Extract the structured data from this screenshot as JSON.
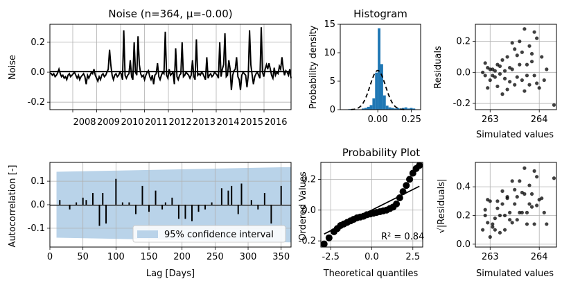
{
  "chart_data": [
    {
      "id": "noise",
      "type": "line",
      "title": "Noise (n=364, μ=-0.00)",
      "ylabel": "Noise",
      "x_tick_labels": [
        "2008",
        "2009",
        "2010",
        "2011",
        "2012",
        "2013",
        "2014",
        "2015",
        "2016"
      ],
      "y_ticks": [
        "-0.2",
        "0.0",
        "0.2"
      ],
      "ylim": [
        -0.25,
        0.32
      ],
      "grid": true,
      "series": [
        {
          "values": [
            -0.005,
            -0.01,
            -0.02,
            -0.01,
            -0.03,
            -0.02,
            -0.005,
            0.02,
            -0.01,
            -0.03,
            -0.02,
            -0.04,
            -0.03,
            -0.05,
            -0.02,
            -0.01,
            -0.03,
            -0.02,
            -0.01,
            0.0,
            -0.02,
            -0.04,
            -0.02,
            -0.05,
            -0.03,
            -0.02,
            -0.01,
            -0.03,
            -0.08,
            -0.02,
            -0.04,
            -0.02,
            0.0,
            -0.01,
            0.02,
            -0.02,
            -0.04,
            -0.06,
            -0.03,
            -0.05,
            -0.02,
            -0.01,
            -0.03,
            -0.02,
            0.0,
            0.02,
            0.15,
            0.05,
            -0.02,
            -0.05,
            -0.02,
            -0.01,
            -0.03,
            -0.02,
            0.0,
            -0.01,
            -0.05,
            0.28,
            -0.02,
            -0.04,
            -0.02,
            -0.01,
            0.08,
            -0.03,
            -0.05,
            0.2,
            0.0,
            -0.02,
            0.24,
            0.05,
            -0.01,
            -0.03,
            -0.02,
            -0.05,
            -0.02,
            0.0,
            0.01,
            -0.03,
            -0.05,
            -0.02,
            -0.08,
            -0.02,
            -0.01,
            0.06,
            -0.03,
            -0.05,
            -0.02,
            0.0,
            -0.01,
            0.27,
            -0.02,
            -0.04,
            0.02,
            -0.02,
            -0.01,
            0.0,
            -0.08,
            0.16,
            -0.03,
            -0.05,
            -0.02,
            -0.01,
            0.2,
            -0.03,
            -0.02,
            0.0,
            -0.01,
            -0.02,
            -0.04,
            -0.02,
            0.08,
            -0.03,
            -0.05,
            0.22,
            -0.02,
            -0.01,
            -0.02,
            0.0,
            -0.01,
            -0.03,
            -0.05,
            0.1,
            -0.04,
            -0.02,
            -0.01,
            -0.03,
            -0.02,
            0.0,
            -0.01,
            -0.02,
            -0.04,
            0.2,
            -0.03,
            0.02,
            0.05,
            0.26,
            -0.03,
            -0.02,
            0.08,
            0.02,
            -0.12,
            -0.02,
            0.01,
            0.02,
            0.1,
            -0.03,
            -0.05,
            -0.12,
            -0.02,
            0.0,
            -0.01,
            -0.02,
            -0.1,
            -0.02,
            0.28,
            0.05,
            -0.02,
            -0.08,
            -0.03,
            -0.01,
            0.0,
            -0.02,
            -0.04,
            0.3,
            0.0,
            -0.03,
            0.02,
            0.05,
            0.02,
            0.06,
            0.02,
            -0.02,
            -0.04,
            0.03,
            -0.02,
            0.0,
            -0.01,
            0.04,
            0.02,
            0.1,
            0.02,
            -0.02,
            0.01,
            0.0,
            -0.02,
            0.02,
            -0.04
          ]
        }
      ]
    },
    {
      "id": "histogram",
      "type": "bar",
      "title": "Histogram",
      "ylabel": "Probability density",
      "x_ticks": [
        "0.00",
        "0.25"
      ],
      "y_ticks": [
        "0",
        "5",
        "10",
        "15"
      ],
      "ylim": [
        0,
        15
      ],
      "xlim": [
        -0.28,
        0.32
      ],
      "bin_edges": [
        -0.22,
        -0.2,
        -0.18,
        -0.16,
        -0.14,
        -0.12,
        -0.1,
        -0.08,
        -0.06,
        -0.04,
        -0.02,
        0.0,
        0.02,
        0.04,
        0.06,
        0.08,
        0.1,
        0.12,
        0.14,
        0.16,
        0.18,
        0.2,
        0.22,
        0.24,
        0.26,
        0.28
      ],
      "values": [
        0.1,
        0.0,
        0.0,
        0.0,
        0.0,
        0.2,
        0.3,
        0.5,
        0.8,
        2.0,
        6.5,
        14.3,
        8.0,
        2.5,
        0.7,
        0.4,
        0.3,
        0.2,
        0.3,
        0.2,
        0.3,
        0.4,
        0.2,
        0.3,
        0.2
      ],
      "curve": {
        "mu": 0.0,
        "sigma": 0.058,
        "style": "dashed"
      }
    },
    {
      "id": "residuals_scatter",
      "type": "scatter",
      "ylabel": "Residuals",
      "xlabel": "Simulated values",
      "x_ticks": [
        "263",
        "264"
      ],
      "y_ticks": [
        "-0.2",
        "0.0",
        "0.2"
      ],
      "xlim": [
        262.7,
        264.35
      ],
      "ylim": [
        -0.24,
        0.31
      ],
      "points": [
        [
          262.85,
          0.0
        ],
        [
          262.9,
          -0.02
        ],
        [
          262.95,
          0.03
        ],
        [
          263.0,
          -0.05
        ],
        [
          263.05,
          0.02
        ],
        [
          263.1,
          -0.03
        ],
        [
          263.15,
          0.05
        ],
        [
          263.2,
          -0.01
        ],
        [
          263.25,
          0.08
        ],
        [
          263.3,
          -0.04
        ],
        [
          263.35,
          0.1
        ],
        [
          263.4,
          -0.06
        ],
        [
          263.45,
          0.02
        ],
        [
          263.5,
          0.15
        ],
        [
          263.55,
          -0.03
        ],
        [
          263.6,
          0.2
        ],
        [
          263.65,
          -0.05
        ],
        [
          263.7,
          0.28
        ],
        [
          263.75,
          0.05
        ],
        [
          263.8,
          -0.08
        ],
        [
          263.85,
          0.12
        ],
        [
          263.9,
          -0.02
        ],
        [
          263.95,
          0.22
        ],
        [
          264.0,
          -0.1
        ],
        [
          264.05,
          0.1
        ],
        [
          264.1,
          -0.05
        ],
        [
          264.15,
          0.02
        ],
        [
          264.3,
          -0.21
        ],
        [
          262.95,
          -0.1
        ],
        [
          263.0,
          0.02
        ],
        [
          263.05,
          -0.02
        ],
        [
          263.1,
          0.01
        ],
        [
          263.2,
          0.04
        ],
        [
          263.3,
          0.01
        ],
        [
          263.4,
          0.03
        ],
        [
          263.5,
          -0.08
        ],
        [
          263.6,
          0.05
        ],
        [
          263.7,
          -0.12
        ],
        [
          263.8,
          0.17
        ],
        [
          263.9,
          0.26
        ],
        [
          263.45,
          0.19
        ],
        [
          263.25,
          -0.14
        ],
        [
          263.15,
          -0.09
        ],
        [
          262.9,
          0.06
        ],
        [
          263.35,
          -0.11
        ],
        [
          263.55,
          0.11
        ],
        [
          263.65,
          0.13
        ],
        [
          263.75,
          -0.02
        ],
        [
          263.85,
          0.07
        ],
        [
          263.95,
          -0.07
        ]
      ],
      "grid": true
    },
    {
      "id": "autocorrelation",
      "type": "bar",
      "ylabel": "Autocorrelation [-]",
      "xlabel": "Lag [Days]",
      "x_ticks": [
        "0",
        "50",
        "100",
        "150",
        "200",
        "250",
        "300",
        "350"
      ],
      "y_ticks": [
        "-0.1",
        "0.0",
        "0.1"
      ],
      "xlim": [
        0,
        365
      ],
      "ylim": [
        -0.18,
        0.18
      ],
      "legend": "95% confidence interval",
      "legend_position": "lower-right",
      "confidence_band": {
        "start": [
          10,
          0.14
        ],
        "end": [
          365,
          0.16
        ]
      },
      "lags": [
        15,
        30,
        40,
        50,
        55,
        65,
        75,
        80,
        85,
        100,
        110,
        120,
        130,
        140,
        150,
        160,
        170,
        175,
        185,
        195,
        205,
        215,
        225,
        235,
        245,
        260,
        270,
        275,
        285,
        290,
        305,
        315,
        325,
        335,
        350
      ],
      "values": [
        0.02,
        -0.02,
        0.01,
        0.03,
        0.02,
        0.05,
        -0.09,
        0.05,
        -0.08,
        0.11,
        0.01,
        0.01,
        -0.04,
        0.08,
        -0.03,
        0.06,
        -0.02,
        0.01,
        0.03,
        -0.06,
        -0.06,
        -0.07,
        -0.03,
        -0.02,
        0.01,
        0.07,
        0.06,
        0.08,
        -0.04,
        0.09,
        0.02,
        -0.02,
        0.05,
        -0.08,
        0.08
      ],
      "grid": true
    },
    {
      "id": "probability_plot",
      "type": "scatter",
      "title": "Probability Plot",
      "ylabel": "Ordered Values",
      "xlabel": "Theoretical quantiles",
      "x_ticks": [
        "-2.5",
        "0.0",
        "2.5"
      ],
      "y_ticks": [
        "-0.2",
        "0.0",
        "0.2"
      ],
      "xlim": [
        -3.1,
        3.1
      ],
      "ylim": [
        -0.24,
        0.31
      ],
      "annotation": "R² = 0.84",
      "fit_line": {
        "from": [
          -2.9,
          -0.155
        ],
        "to": [
          2.9,
          0.155
        ]
      },
      "quantile_points": [
        [
          -2.9,
          -0.22
        ],
        [
          -2.6,
          -0.18
        ],
        [
          -2.3,
          -0.14
        ],
        [
          -2.1,
          -0.12
        ],
        [
          -1.9,
          -0.1
        ],
        [
          -1.7,
          -0.09
        ],
        [
          -1.5,
          -0.08
        ],
        [
          -1.3,
          -0.07
        ],
        [
          -1.1,
          -0.06
        ],
        [
          -0.9,
          -0.05
        ],
        [
          -0.7,
          -0.045
        ],
        [
          -0.5,
          -0.04
        ],
        [
          -0.3,
          -0.03
        ],
        [
          -0.1,
          -0.025
        ],
        [
          0.1,
          -0.02
        ],
        [
          0.3,
          -0.015
        ],
        [
          0.5,
          -0.01
        ],
        [
          0.7,
          -0.005
        ],
        [
          0.9,
          0.0
        ],
        [
          1.1,
          0.01
        ],
        [
          1.3,
          0.02
        ],
        [
          1.5,
          0.04
        ],
        [
          1.7,
          0.08
        ],
        [
          1.9,
          0.12
        ],
        [
          2.1,
          0.16
        ],
        [
          2.3,
          0.2
        ],
        [
          2.5,
          0.24
        ],
        [
          2.7,
          0.27
        ],
        [
          2.9,
          0.29
        ]
      ],
      "grid": true
    },
    {
      "id": "sqrt_residuals",
      "type": "scatter",
      "ylabel": "√|Residuals|",
      "xlabel": "Simulated values",
      "x_ticks": [
        "263",
        "264"
      ],
      "y_ticks": [
        "0.0",
        "0.2",
        "0.4"
      ],
      "xlim": [
        262.7,
        264.35
      ],
      "ylim": [
        -0.02,
        0.57
      ],
      "points": [
        [
          262.85,
          0.1
        ],
        [
          262.9,
          0.2
        ],
        [
          262.95,
          0.15
        ],
        [
          263.0,
          0.3
        ],
        [
          263.05,
          0.12
        ],
        [
          263.1,
          0.18
        ],
        [
          263.15,
          0.25
        ],
        [
          263.2,
          0.08
        ],
        [
          263.25,
          0.28
        ],
        [
          263.3,
          0.2
        ],
        [
          263.35,
          0.32
        ],
        [
          263.4,
          0.22
        ],
        [
          263.45,
          0.15
        ],
        [
          263.5,
          0.38
        ],
        [
          263.55,
          0.17
        ],
        [
          263.6,
          0.44
        ],
        [
          263.65,
          0.22
        ],
        [
          263.7,
          0.53
        ],
        [
          263.75,
          0.22
        ],
        [
          263.8,
          0.28
        ],
        [
          263.85,
          0.35
        ],
        [
          263.9,
          0.14
        ],
        [
          263.95,
          0.47
        ],
        [
          264.0,
          0.31
        ],
        [
          264.05,
          0.32
        ],
        [
          264.1,
          0.22
        ],
        [
          264.15,
          0.14
        ],
        [
          264.3,
          0.46
        ],
        [
          262.95,
          0.31
        ],
        [
          263.0,
          0.05
        ],
        [
          263.05,
          0.14
        ],
        [
          263.1,
          0.1
        ],
        [
          263.2,
          0.2
        ],
        [
          263.3,
          0.1
        ],
        [
          263.4,
          0.17
        ],
        [
          263.5,
          0.28
        ],
        [
          263.6,
          0.22
        ],
        [
          263.7,
          0.35
        ],
        [
          263.8,
          0.41
        ],
        [
          263.9,
          0.51
        ],
        [
          263.45,
          0.44
        ],
        [
          263.25,
          0.37
        ],
        [
          263.15,
          0.3
        ],
        [
          262.9,
          0.24
        ],
        [
          263.35,
          0.33
        ],
        [
          263.55,
          0.33
        ],
        [
          263.65,
          0.36
        ],
        [
          263.75,
          0.14
        ],
        [
          263.85,
          0.26
        ],
        [
          263.95,
          0.27
        ]
      ],
      "grid": true
    }
  ]
}
